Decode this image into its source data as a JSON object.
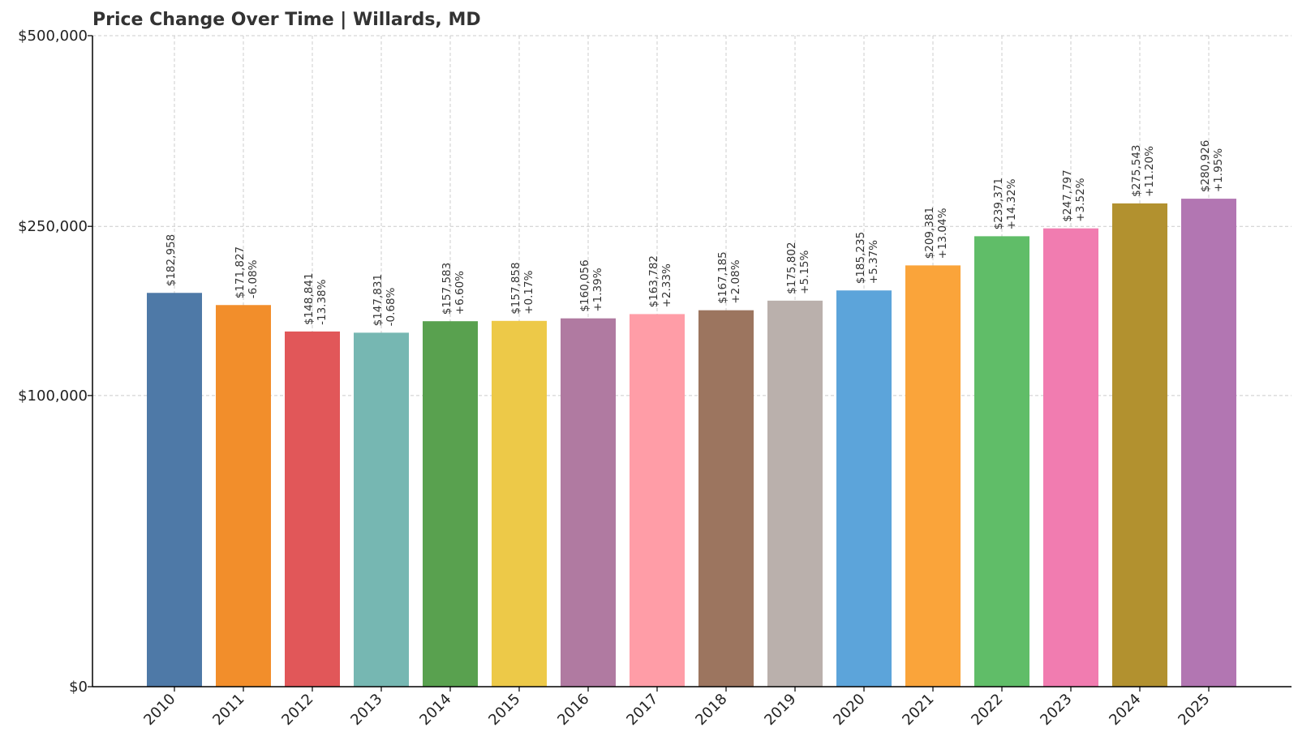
{
  "chart_data": {
    "type": "bar",
    "title": "Price Change Over Time | Willards, MD",
    "xlabel": "",
    "ylabel": "",
    "y_scale": "sqrt",
    "ylim": [
      0,
      500000
    ],
    "y_ticks": [
      {
        "value": 0,
        "label": "$0"
      },
      {
        "value": 100000,
        "label": "$100,000"
      },
      {
        "value": 250000,
        "label": "$250,000"
      },
      {
        "value": 500000,
        "label": "$500,000"
      }
    ],
    "grid": true,
    "categories": [
      "2010",
      "2011",
      "2012",
      "2013",
      "2014",
      "2015",
      "2016",
      "2017",
      "2018",
      "2019",
      "2020",
      "2021",
      "2022",
      "2023",
      "2024",
      "2025"
    ],
    "values": [
      182958,
      171827,
      148841,
      147831,
      157583,
      157858,
      160056,
      163782,
      167185,
      175802,
      185235,
      209381,
      239371,
      247797,
      275543,
      280926
    ],
    "value_labels": [
      "$182,958",
      "$171,827",
      "$148,841",
      "$147,831",
      "$157,583",
      "$157,858",
      "$160,056",
      "$163,782",
      "$167,185",
      "$175,802",
      "$185,235",
      "$209,381",
      "$239,371",
      "$247,797",
      "$275,543",
      "$280,926"
    ],
    "change_labels": [
      "",
      "-6.08%",
      "-13.38%",
      "-0.68%",
      "+6.60%",
      "+0.17%",
      "+1.39%",
      "+2.33%",
      "+2.08%",
      "+5.15%",
      "+5.37%",
      "+13.04%",
      "+14.32%",
      "+3.52%",
      "+11.20%",
      "+1.95%"
    ],
    "colors": [
      "#4e79a7",
      "#f28e2b",
      "#e15759",
      "#76b7b2",
      "#59a14f",
      "#edc948",
      "#b07aa1",
      "#ff9da7",
      "#9c755f",
      "#bab0ac",
      "#5ca4da",
      "#faa43a",
      "#60bd68",
      "#f17cb0",
      "#b2912f",
      "#b276b2"
    ]
  }
}
